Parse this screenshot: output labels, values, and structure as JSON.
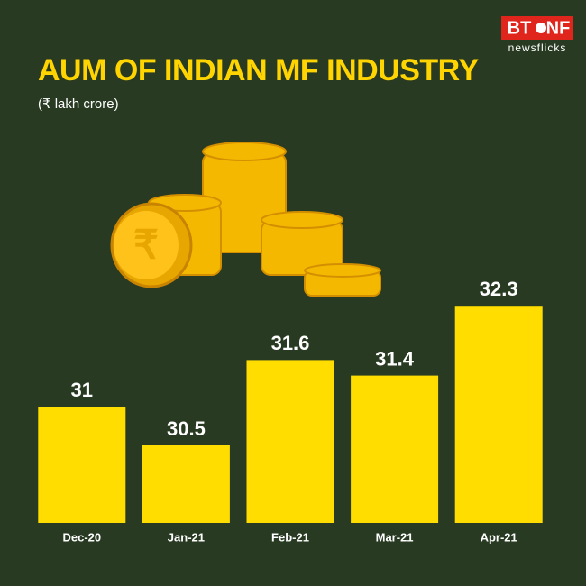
{
  "logo": {
    "brand": "BT",
    "brand_suffix": "NF",
    "tagline": "newsflicks"
  },
  "chart_data": {
    "type": "bar",
    "title": "AUM OF INDIAN MF INDUSTRY",
    "subtitle": "(₹ lakh crore)",
    "categories": [
      "Dec-20",
      "Jan-21",
      "Feb-21",
      "Mar-21",
      "Apr-21"
    ],
    "values": [
      31,
      30.5,
      31.6,
      31.4,
      32.3
    ],
    "color": "#ffdd00",
    "ylim": [
      29.5,
      33
    ]
  }
}
